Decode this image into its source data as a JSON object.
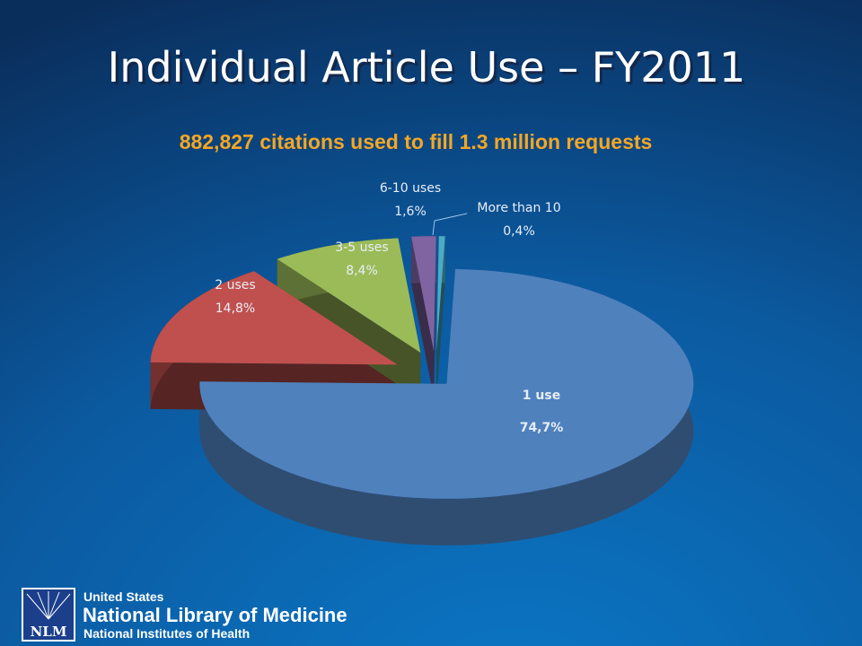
{
  "chart_data": {
    "type": "pie",
    "title": "Individual Article Use – FY2011",
    "subtitle": "882,827 citations used to fill 1.3 million requests",
    "categories": [
      "1 use",
      "2 uses",
      "3-5 uses",
      "6-10 uses",
      "More than 10"
    ],
    "values": [
      74.7,
      14.8,
      8.4,
      1.6,
      0.4
    ],
    "value_labels": [
      "74,7%",
      "14,8%",
      "8,4%",
      "1,6%",
      "0,4%"
    ],
    "colors": [
      "#4f81bd",
      "#c0504d",
      "#9bbb59",
      "#8064a2",
      "#4bacc6"
    ]
  },
  "logo": {
    "mark": "NLM",
    "line1": "United States",
    "line2": "National Library of Medicine",
    "line3": "National Institutes of Health"
  }
}
